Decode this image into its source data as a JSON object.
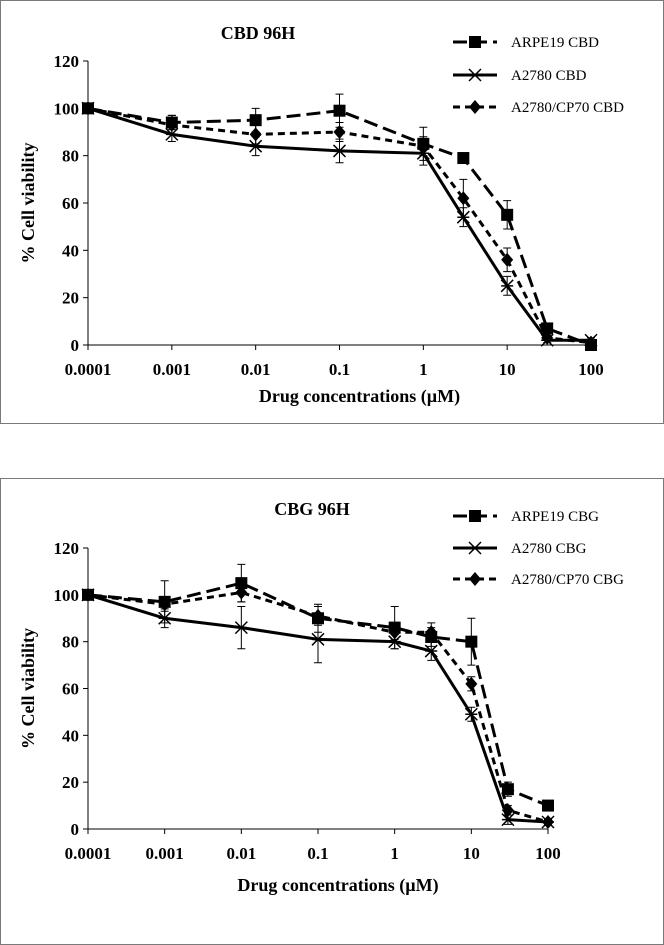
{
  "chart_data": [
    {
      "type": "line",
      "title": "CBD 96H",
      "xlabel": "Drug concentrations (µM)",
      "ylabel": "% Cell viability",
      "xscale": "log",
      "xlim": [
        0.0001,
        100
      ],
      "ylim": [
        0,
        120
      ],
      "xticks": [
        "0.0001",
        "0.001",
        "0.01",
        "0.1",
        "1",
        "10",
        "100"
      ],
      "yticks": [
        "0",
        "20",
        "40",
        "60",
        "80",
        "100",
        "120"
      ],
      "grid": false,
      "legend": "top-right",
      "series": [
        {
          "name": "ARPE19 CBD",
          "marker": "square",
          "dash": "long",
          "x": [
            0.0001,
            0.001,
            0.01,
            0.1,
            1,
            3,
            10,
            30,
            100
          ],
          "y": [
            100,
            94,
            95,
            99,
            85,
            79,
            55,
            7,
            0
          ],
          "err": [
            2,
            3,
            5,
            7,
            7,
            0,
            6,
            2,
            0
          ]
        },
        {
          "name": "A2780 CBD",
          "marker": "star",
          "dash": "solid",
          "x": [
            0.0001,
            0.001,
            0.01,
            0.1,
            1,
            3,
            10,
            30,
            100
          ],
          "y": [
            100,
            89,
            84,
            82,
            81,
            54,
            25,
            2,
            2
          ],
          "err": [
            1,
            3,
            4,
            5,
            5,
            4,
            4,
            1,
            1
          ]
        },
        {
          "name": "A2780/CP70 CBD",
          "marker": "diamond",
          "dash": "short",
          "x": [
            0.0001,
            0.001,
            0.01,
            0.1,
            1,
            3,
            10,
            30,
            100
          ],
          "y": [
            100,
            93,
            89,
            90,
            84,
            62,
            36,
            3,
            1
          ],
          "err": [
            2,
            4,
            4,
            4,
            4,
            8,
            5,
            1,
            1
          ]
        }
      ]
    },
    {
      "type": "line",
      "title": "CBG 96H",
      "xlabel": "Drug concentrations (µM)",
      "ylabel": "% Cell viability",
      "xscale": "log",
      "xlim": [
        0.0001,
        100
      ],
      "ylim": [
        0,
        120
      ],
      "xticks": [
        "0.0001",
        "0.001",
        "0.01",
        "0.1",
        "1",
        "10",
        "100"
      ],
      "yticks": [
        "0",
        "20",
        "40",
        "60",
        "80",
        "100",
        "120"
      ],
      "grid": false,
      "legend": "top-right",
      "series": [
        {
          "name": "ARPE19 CBG",
          "marker": "square",
          "dash": "long",
          "x": [
            0.0001,
            0.001,
            0.01,
            0.1,
            1,
            3,
            10,
            30,
            100
          ],
          "y": [
            100,
            97,
            105,
            90,
            86,
            82,
            80,
            17,
            10
          ],
          "err": [
            2,
            9,
            8,
            6,
            9,
            4,
            10,
            3,
            1
          ]
        },
        {
          "name": "A2780 CBG",
          "marker": "star",
          "dash": "solid",
          "x": [
            0.0001,
            0.001,
            0.01,
            0.1,
            1,
            3,
            10,
            30,
            100
          ],
          "y": [
            100,
            90,
            86,
            81,
            80,
            76,
            49,
            4,
            3
          ],
          "err": [
            1,
            4,
            9,
            10,
            3,
            4,
            3,
            2,
            1
          ]
        },
        {
          "name": "A2780/CP70 CBG",
          "marker": "diamond",
          "dash": "short",
          "x": [
            0.0001,
            0.001,
            0.01,
            0.1,
            1,
            3,
            10,
            30,
            100
          ],
          "y": [
            100,
            96,
            101,
            91,
            84,
            84,
            62,
            8,
            3
          ],
          "err": [
            2,
            3,
            4,
            4,
            3,
            4,
            3,
            2,
            1
          ]
        }
      ]
    }
  ]
}
